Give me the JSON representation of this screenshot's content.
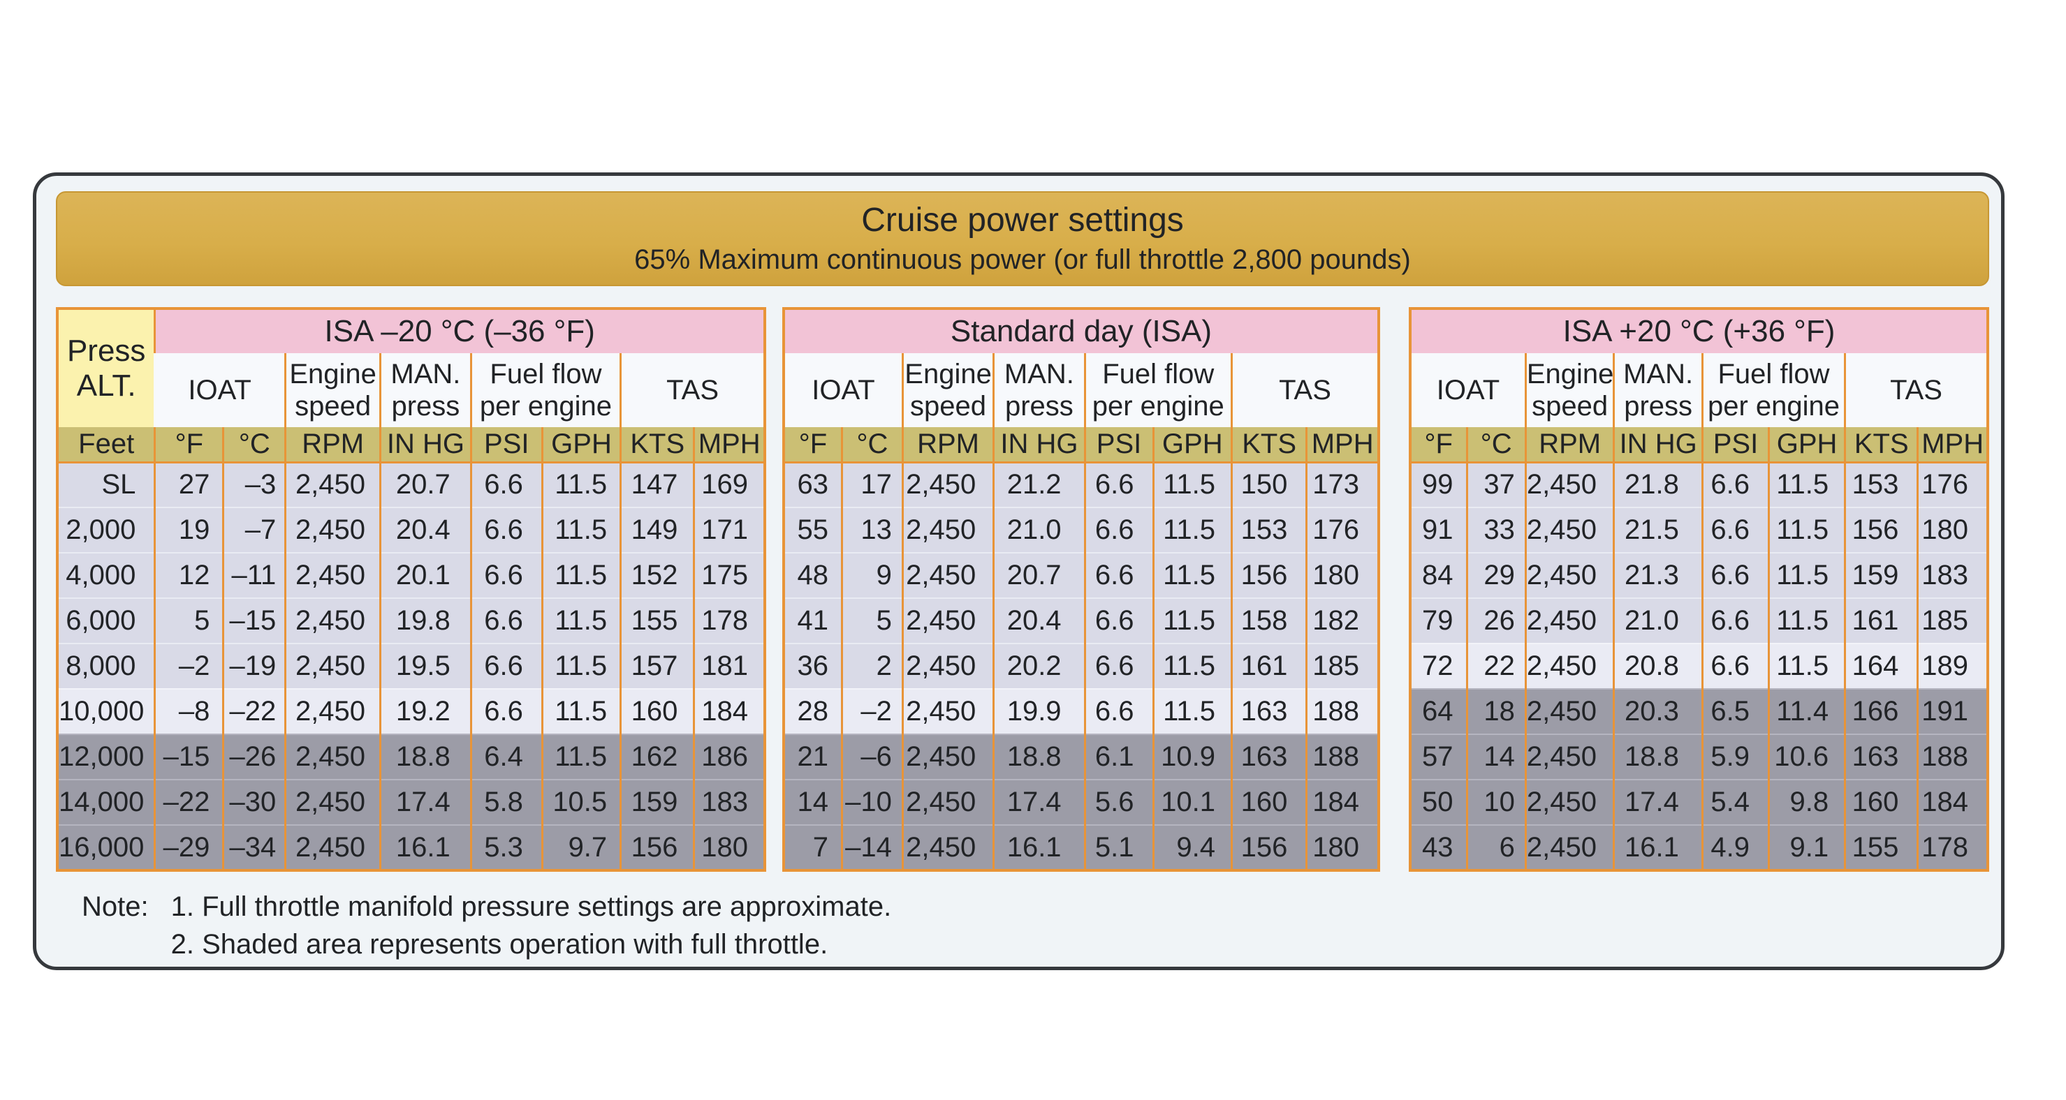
{
  "banner": {
    "title": "Cruise power settings",
    "subtitle": "65% Maximum continuous power (or full throttle 2,800 pounds)"
  },
  "labels": {
    "press_alt": "Press\nALT.",
    "ioat": "IOAT",
    "engine_speed": "Engine\nspeed",
    "man_press": "MAN.\npress",
    "fuel_flow": "Fuel flow\nper engine",
    "tas": "TAS"
  },
  "units": {
    "feet": "Feet",
    "f": "°F",
    "c": "°C",
    "rpm": "RPM",
    "inhg": "IN HG",
    "psi": "PSI",
    "gph": "GPH",
    "kts": "KTS",
    "mph": "MPH"
  },
  "tables": [
    {
      "title": "ISA –20 °C (–36 °F)",
      "rows": [
        {
          "alt": "SL",
          "f": "27",
          "c": "–3",
          "rpm": "2,450",
          "inhg": "20.7",
          "psi": "6.6",
          "gph": "11.5",
          "kts": "147",
          "mph": "169",
          "shade": "lav"
        },
        {
          "alt": "2,000",
          "f": "19",
          "c": "–7",
          "rpm": "2,450",
          "inhg": "20.4",
          "psi": "6.6",
          "gph": "11.5",
          "kts": "149",
          "mph": "171",
          "shade": "lav"
        },
        {
          "alt": "4,000",
          "f": "12",
          "c": "–11",
          "rpm": "2,450",
          "inhg": "20.1",
          "psi": "6.6",
          "gph": "11.5",
          "kts": "152",
          "mph": "175",
          "shade": "lav"
        },
        {
          "alt": "6,000",
          "f": "5",
          "c": "–15",
          "rpm": "2,450",
          "inhg": "19.8",
          "psi": "6.6",
          "gph": "11.5",
          "kts": "155",
          "mph": "178",
          "shade": "lav"
        },
        {
          "alt": "8,000",
          "f": "–2",
          "c": "–19",
          "rpm": "2,450",
          "inhg": "19.5",
          "psi": "6.6",
          "gph": "11.5",
          "kts": "157",
          "mph": "181",
          "shade": "lav"
        },
        {
          "alt": "10,000",
          "f": "–8",
          "c": "–22",
          "rpm": "2,450",
          "inhg": "19.2",
          "psi": "6.6",
          "gph": "11.5",
          "kts": "160",
          "mph": "184",
          "shade": "lite"
        },
        {
          "alt": "12,000",
          "f": "–15",
          "c": "–26",
          "rpm": "2,450",
          "inhg": "18.8",
          "psi": "6.4",
          "gph": "11.5",
          "kts": "162",
          "mph": "186",
          "shade": "gray"
        },
        {
          "alt": "14,000",
          "f": "–22",
          "c": "–30",
          "rpm": "2,450",
          "inhg": "17.4",
          "psi": "5.8",
          "gph": "10.5",
          "kts": "159",
          "mph": "183",
          "shade": "gray"
        },
        {
          "alt": "16,000",
          "f": "–29",
          "c": "–34",
          "rpm": "2,450",
          "inhg": "16.1",
          "psi": "5.3",
          "gph": "9.7",
          "kts": "156",
          "mph": "180",
          "shade": "gray"
        }
      ]
    },
    {
      "title": "Standard day (ISA)",
      "rows": [
        {
          "f": "63",
          "c": "17",
          "rpm": "2,450",
          "inhg": "21.2",
          "psi": "6.6",
          "gph": "11.5",
          "kts": "150",
          "mph": "173",
          "shade": "lav"
        },
        {
          "f": "55",
          "c": "13",
          "rpm": "2,450",
          "inhg": "21.0",
          "psi": "6.6",
          "gph": "11.5",
          "kts": "153",
          "mph": "176",
          "shade": "lav"
        },
        {
          "f": "48",
          "c": "9",
          "rpm": "2,450",
          "inhg": "20.7",
          "psi": "6.6",
          "gph": "11.5",
          "kts": "156",
          "mph": "180",
          "shade": "lav"
        },
        {
          "f": "41",
          "c": "5",
          "rpm": "2,450",
          "inhg": "20.4",
          "psi": "6.6",
          "gph": "11.5",
          "kts": "158",
          "mph": "182",
          "shade": "lav"
        },
        {
          "f": "36",
          "c": "2",
          "rpm": "2,450",
          "inhg": "20.2",
          "psi": "6.6",
          "gph": "11.5",
          "kts": "161",
          "mph": "185",
          "shade": "lav"
        },
        {
          "f": "28",
          "c": "–2",
          "rpm": "2,450",
          "inhg": "19.9",
          "psi": "6.6",
          "gph": "11.5",
          "kts": "163",
          "mph": "188",
          "shade": "lite"
        },
        {
          "f": "21",
          "c": "–6",
          "rpm": "2,450",
          "inhg": "18.8",
          "psi": "6.1",
          "gph": "10.9",
          "kts": "163",
          "mph": "188",
          "shade": "gray"
        },
        {
          "f": "14",
          "c": "–10",
          "rpm": "2,450",
          "inhg": "17.4",
          "psi": "5.6",
          "gph": "10.1",
          "kts": "160",
          "mph": "184",
          "shade": "gray"
        },
        {
          "f": "7",
          "c": "–14",
          "rpm": "2,450",
          "inhg": "16.1",
          "psi": "5.1",
          "gph": "9.4",
          "kts": "156",
          "mph": "180",
          "shade": "gray"
        }
      ]
    },
    {
      "title": "ISA +20 °C (+36 °F)",
      "rows": [
        {
          "f": "99",
          "c": "37",
          "rpm": "2,450",
          "inhg": "21.8",
          "psi": "6.6",
          "gph": "11.5",
          "kts": "153",
          "mph": "176",
          "shade": "lav"
        },
        {
          "f": "91",
          "c": "33",
          "rpm": "2,450",
          "inhg": "21.5",
          "psi": "6.6",
          "gph": "11.5",
          "kts": "156",
          "mph": "180",
          "shade": "lav"
        },
        {
          "f": "84",
          "c": "29",
          "rpm": "2,450",
          "inhg": "21.3",
          "psi": "6.6",
          "gph": "11.5",
          "kts": "159",
          "mph": "183",
          "shade": "lav"
        },
        {
          "f": "79",
          "c": "26",
          "rpm": "2,450",
          "inhg": "21.0",
          "psi": "6.6",
          "gph": "11.5",
          "kts": "161",
          "mph": "185",
          "shade": "lav"
        },
        {
          "f": "72",
          "c": "22",
          "rpm": "2,450",
          "inhg": "20.8",
          "psi": "6.6",
          "gph": "11.5",
          "kts": "164",
          "mph": "189",
          "shade": "lite"
        },
        {
          "f": "64",
          "c": "18",
          "rpm": "2,450",
          "inhg": "20.3",
          "psi": "6.5",
          "gph": "11.4",
          "kts": "166",
          "mph": "191",
          "shade": "gray"
        },
        {
          "f": "57",
          "c": "14",
          "rpm": "2,450",
          "inhg": "18.8",
          "psi": "5.9",
          "gph": "10.6",
          "kts": "163",
          "mph": "188",
          "shade": "gray"
        },
        {
          "f": "50",
          "c": "10",
          "rpm": "2,450",
          "inhg": "17.4",
          "psi": "5.4",
          "gph": "9.8",
          "kts": "160",
          "mph": "184",
          "shade": "gray"
        },
        {
          "f": "43",
          "c": "6",
          "rpm": "2,450",
          "inhg": "16.1",
          "psi": "4.9",
          "gph": "9.1",
          "kts": "155",
          "mph": "178",
          "shade": "gray"
        }
      ]
    }
  ],
  "note": {
    "label": "Note:",
    "item1": "1. Full throttle manifold pressure settings are approximate.",
    "item2": "2. Shaded area represents operation with full throttle."
  },
  "palette": {
    "orange": "#e89438",
    "pink": "#f2c3d6",
    "yellow": "#fbf2ae",
    "olive": "#cbbf74",
    "lav": "#d9dae7",
    "lite": "#eaebf4",
    "gray": "#9c9ca7",
    "gold": "#d8ae4a"
  }
}
